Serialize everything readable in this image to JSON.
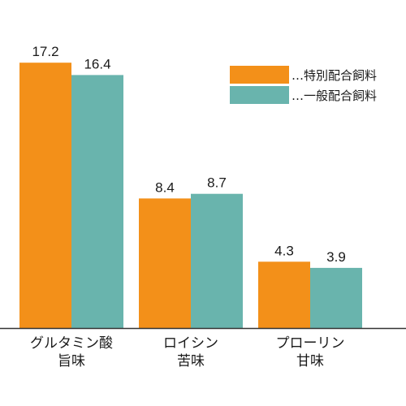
{
  "chart_data": {
    "type": "bar",
    "categories": [
      {
        "line1": "グルタミン酸",
        "line2": "旨味"
      },
      {
        "line1": "ロイシン",
        "line2": "苦味"
      },
      {
        "line1": "プローリン",
        "line2": "甘味"
      }
    ],
    "series": [
      {
        "name": "…特別配合飼料",
        "color": "#f39019",
        "values": [
          17.2,
          8.4,
          4.3
        ]
      },
      {
        "name": "…一般配合飼料",
        "color": "#69b4ad",
        "values": [
          16.4,
          8.7,
          3.9
        ]
      }
    ],
    "value_labels": [
      [
        "17.2",
        "8.4",
        "4.3"
      ],
      [
        "16.4",
        "8.7",
        "3.9"
      ]
    ],
    "ylim": [
      0,
      18
    ],
    "grid": false,
    "legend": "top-right",
    "axis_color": "#333333"
  }
}
